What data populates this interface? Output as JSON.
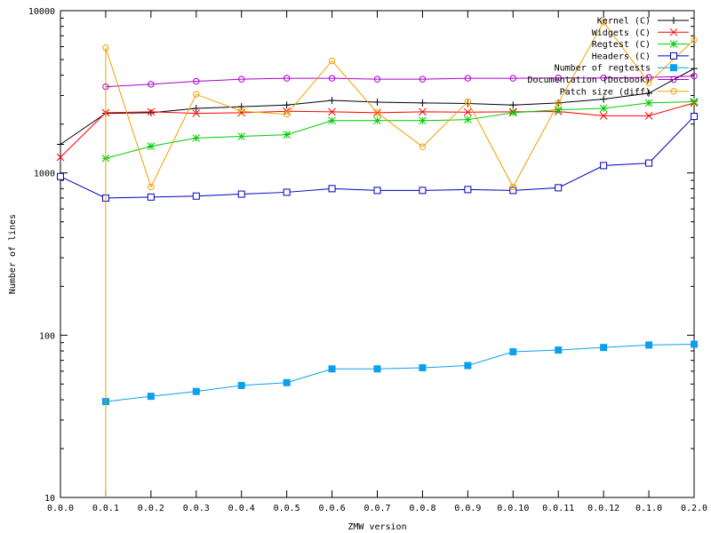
{
  "chart_data": {
    "type": "line",
    "title": "",
    "xlabel": "ZMW version",
    "ylabel": "Number of lines",
    "categories": [
      "0.0.0",
      "0.0.1",
      "0.0.2",
      "0.0.3",
      "0.0.4",
      "0.0.5",
      "0.0.6",
      "0.0.7",
      "0.0.8",
      "0.0.9",
      "0.0.10",
      "0.0.11",
      "0.0.12",
      "0.1.0",
      "0.2.0"
    ],
    "ylim": [
      10,
      10000
    ],
    "yscale": "log",
    "yticks": [
      10,
      100,
      1000,
      10000
    ],
    "ytick_labels": [
      "10",
      "100",
      "1000",
      "10000"
    ],
    "grid": false,
    "legend_position": "top-right",
    "series": [
      {
        "name": "Kernel (C)",
        "color": "#000000",
        "marker": "plus",
        "values": [
          1500,
          2330,
          2350,
          2500,
          2560,
          2620,
          2800,
          2730,
          2700,
          2680,
          2620,
          2700,
          2850,
          3100,
          4400
        ]
      },
      {
        "name": "Widgets (C)",
        "color": "#ff0000",
        "marker": "cross",
        "values": [
          1250,
          2350,
          2380,
          2330,
          2350,
          2400,
          2380,
          2350,
          2380,
          2370,
          2380,
          2390,
          2250,
          2250,
          2700
        ]
      },
      {
        "name": "Regtest (C)",
        "color": "#00cc00",
        "marker": "star",
        "values": [
          null,
          1230,
          1460,
          1640,
          1680,
          1720,
          2100,
          2100,
          2100,
          2130,
          2350,
          2450,
          2500,
          2700,
          2750
        ]
      },
      {
        "name": "Headers (C)",
        "color": "#0000bb",
        "marker": "square-open",
        "values": [
          950,
          700,
          710,
          720,
          740,
          760,
          800,
          780,
          780,
          790,
          780,
          810,
          1110,
          1150,
          2230
        ]
      },
      {
        "name": "Number of regtests",
        "color": "#0aa0f0",
        "marker": "square-filled",
        "values": [
          null,
          39,
          42,
          45,
          49,
          51,
          62,
          62,
          63,
          65,
          79,
          81,
          84,
          87,
          88
        ]
      },
      {
        "name": "Documentation (Docbook)",
        "color": "#aa00cc",
        "marker": "circle-open",
        "values": [
          null,
          3400,
          3520,
          3670,
          3780,
          3830,
          3830,
          3780,
          3780,
          3830,
          3830,
          3850,
          3850,
          3880,
          3950
        ]
      },
      {
        "name": "Patch size (diff)",
        "color": "#f0a000",
        "marker": "circle-open",
        "values": [
          null,
          5900,
          820,
          3050,
          2400,
          2300,
          4900,
          2350,
          1450,
          2750,
          820,
          2700,
          8500,
          3600,
          6600
        ],
        "drop_from_bottom_at": "0.0.1"
      }
    ]
  }
}
